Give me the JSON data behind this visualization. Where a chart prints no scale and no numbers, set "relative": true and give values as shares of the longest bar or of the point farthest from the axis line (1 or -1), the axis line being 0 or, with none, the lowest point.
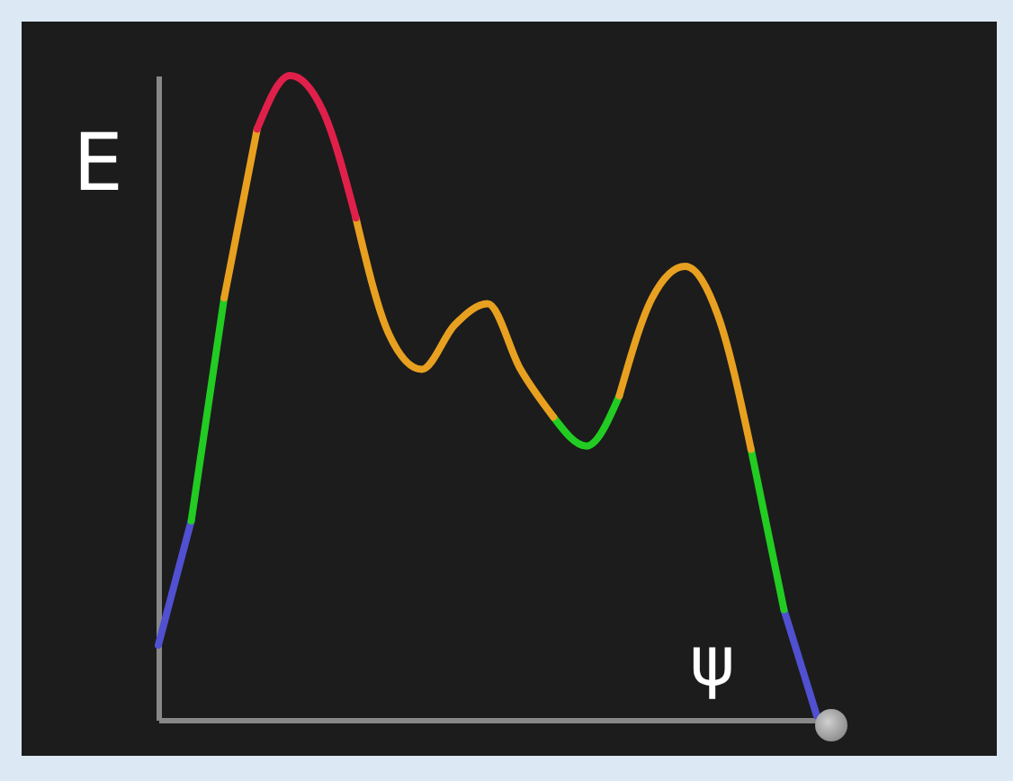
{
  "chart_data": {
    "type": "line",
    "xlabel": "ψ",
    "ylabel": "E",
    "relative": true,
    "legend": false,
    "grid": false,
    "marker": "none",
    "line_style": "solid",
    "categories": [
      null,
      null,
      null,
      null,
      null,
      null,
      null,
      null,
      null,
      null,
      null,
      null,
      null,
      null,
      null,
      null,
      null,
      null,
      null,
      null,
      null
    ],
    "series": [
      {
        "color": "#5050d0",
        "values": [
          0.116,
          0.309,
          null,
          null,
          null,
          null,
          null,
          null,
          null,
          null,
          null,
          null,
          null,
          null,
          null,
          null,
          null,
          null,
          null,
          0.171,
          0.006
        ]
      },
      {
        "color": "#22cc22",
        "values": [
          null,
          0.309,
          0.655,
          null,
          null,
          null,
          null,
          null,
          null,
          null,
          null,
          null,
          0.47,
          0.425,
          0.503,
          null,
          null,
          null,
          0.42,
          0.171,
          null
        ]
      },
      {
        "color": "#e8a020",
        "values": [
          null,
          null,
          0.655,
          0.917,
          null,
          null,
          0.779,
          0.599,
          0.544,
          0.613,
          0.646,
          0.544,
          0.47,
          null,
          0.503,
          0.655,
          0.704,
          0.627,
          0.42,
          null,
          null
        ]
      },
      {
        "color": "#e0204a",
        "values": [
          null,
          null,
          null,
          0.917,
          1.0,
          0.945,
          0.779,
          null,
          null,
          null,
          null,
          null,
          null,
          null,
          null,
          null,
          null,
          null,
          null,
          null,
          null
        ]
      }
    ]
  }
}
